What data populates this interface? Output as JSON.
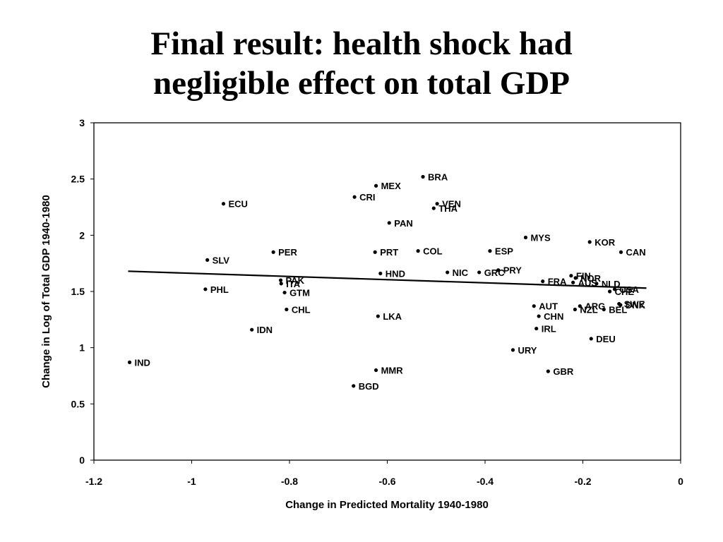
{
  "slide": {
    "title_line1": "Final result: health shock had",
    "title_line2": "negligible effect on total GDP"
  },
  "chart_data": {
    "type": "scatter",
    "title": "",
    "xlabel": "Change in Predicted Mortality 1940-1980",
    "ylabel": "Change in Log of Total GDP 1940-1980",
    "xlim": [
      -1.2,
      0
    ],
    "ylim": [
      0,
      3
    ],
    "xticks": [
      -1.2,
      -1,
      -0.8,
      -0.6,
      -0.4,
      -0.2,
      0
    ],
    "xtick_labels": [
      "-1.2",
      "-1",
      "-0.8",
      "-0.6",
      "-0.4",
      "-0.2",
      "0"
    ],
    "yticks": [
      0,
      0.5,
      1,
      1.5,
      2,
      2.5,
      3
    ],
    "ytick_labels": [
      "0",
      "0.5",
      "1",
      "1.5",
      "2",
      "2.5",
      "3"
    ],
    "grid": false,
    "fit_line": {
      "x": [
        -1.13,
        -0.07
      ],
      "y": [
        1.68,
        1.53
      ]
    },
    "points": [
      {
        "label": "IND",
        "x": -1.127,
        "y": 0.87
      },
      {
        "label": "ECU",
        "x": -0.935,
        "y": 2.28
      },
      {
        "label": "SLV",
        "x": -0.968,
        "y": 1.78
      },
      {
        "label": "PHL",
        "x": -0.972,
        "y": 1.52
      },
      {
        "label": "PER",
        "x": -0.833,
        "y": 1.85
      },
      {
        "label": "PAK",
        "x": -0.818,
        "y": 1.6
      },
      {
        "label": "ITA",
        "x": -0.817,
        "y": 1.57
      },
      {
        "label": "GTM",
        "x": -0.81,
        "y": 1.49
      },
      {
        "label": "CHL",
        "x": -0.806,
        "y": 1.34
      },
      {
        "label": "IDN",
        "x": -0.877,
        "y": 1.16
      },
      {
        "label": "BRA",
        "x": -0.527,
        "y": 2.52
      },
      {
        "label": "MEX",
        "x": -0.623,
        "y": 2.44
      },
      {
        "label": "CRI",
        "x": -0.667,
        "y": 2.34
      },
      {
        "label": "VEN",
        "x": -0.498,
        "y": 2.28
      },
      {
        "label": "THA",
        "x": -0.505,
        "y": 2.24
      },
      {
        "label": "PAN",
        "x": -0.596,
        "y": 2.11
      },
      {
        "label": "PRT",
        "x": -0.625,
        "y": 1.85
      },
      {
        "label": "COL",
        "x": -0.537,
        "y": 1.86
      },
      {
        "label": "HND",
        "x": -0.614,
        "y": 1.66
      },
      {
        "label": "LKA",
        "x": -0.619,
        "y": 1.28
      },
      {
        "label": "NIC",
        "x": -0.477,
        "y": 1.67
      },
      {
        "label": "GRC",
        "x": -0.412,
        "y": 1.67
      },
      {
        "label": "PRY",
        "x": -0.373,
        "y": 1.69
      },
      {
        "label": "ESP",
        "x": -0.39,
        "y": 1.86
      },
      {
        "label": "MYS",
        "x": -0.317,
        "y": 1.98
      },
      {
        "label": "MMR",
        "x": -0.623,
        "y": 0.8
      },
      {
        "label": "BGD",
        "x": -0.669,
        "y": 0.66
      },
      {
        "label": "URY",
        "x": -0.343,
        "y": 0.98
      },
      {
        "label": "GBR",
        "x": -0.271,
        "y": 0.79
      },
      {
        "label": "IRL",
        "x": -0.295,
        "y": 1.17
      },
      {
        "label": "CHN",
        "x": -0.29,
        "y": 1.28
      },
      {
        "label": "AUT",
        "x": -0.3,
        "y": 1.37
      },
      {
        "label": "FRA",
        "x": -0.282,
        "y": 1.59
      },
      {
        "label": "AUS",
        "x": -0.22,
        "y": 1.58
      },
      {
        "label": "FIN",
        "x": -0.224,
        "y": 1.64
      },
      {
        "label": "NOR",
        "x": -0.215,
        "y": 1.62
      },
      {
        "label": "NLD",
        "x": -0.172,
        "y": 1.57
      },
      {
        "label": "KOR",
        "x": -0.186,
        "y": 1.94
      },
      {
        "label": "CAN",
        "x": -0.122,
        "y": 1.85
      },
      {
        "label": "ARG",
        "x": -0.206,
        "y": 1.37
      },
      {
        "label": "NZL",
        "x": -0.216,
        "y": 1.34
      },
      {
        "label": "BEL",
        "x": -0.157,
        "y": 1.34
      },
      {
        "label": "DEU",
        "x": -0.183,
        "y": 1.08
      },
      {
        "label": "USA",
        "x": -0.135,
        "y": 1.52
      },
      {
        "label": "CHE",
        "x": -0.145,
        "y": 1.5
      },
      {
        "label": "SWE",
        "x": -0.126,
        "y": 1.39
      },
      {
        "label": "DNK",
        "x": -0.123,
        "y": 1.38
      }
    ]
  }
}
